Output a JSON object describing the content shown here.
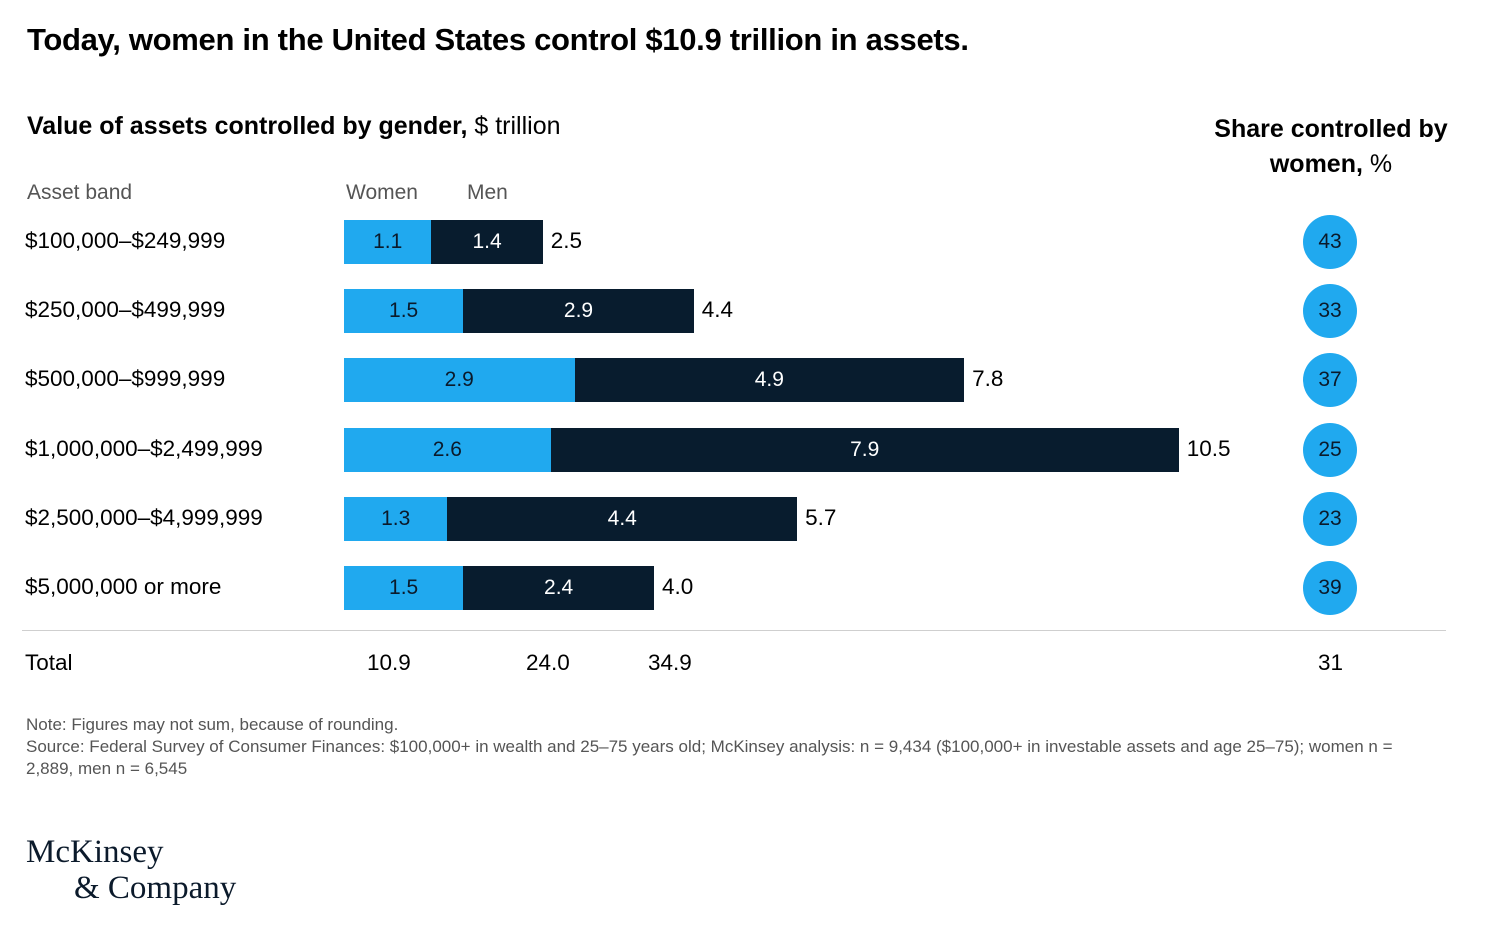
{
  "title": "Today, women in the United States control $10.9 trillion in assets.",
  "subtitle": {
    "bold": "Value of assets controlled by gender,",
    "unit": " $ trillion"
  },
  "share_header": {
    "bold": "Share controlled by women,",
    "unit": " %"
  },
  "columns": {
    "band": "Asset band",
    "women": "Women",
    "men": "Men"
  },
  "colors": {
    "women": "#20a9ef",
    "men": "#081c2e"
  },
  "chart_data": {
    "type": "bar",
    "orientation": "horizontal",
    "stacked": true,
    "title": "Value of assets controlled by gender, $ trillion",
    "categories": [
      "$100,000–$249,999",
      "$250,000–$499,999",
      "$500,000–$999,999",
      "$1,000,000–$2,499,999",
      "$2,500,000–$4,999,999",
      "$5,000,000 or more"
    ],
    "series": [
      {
        "name": "Women",
        "values": [
          1.1,
          1.5,
          2.9,
          2.6,
          1.3,
          1.5
        ]
      },
      {
        "name": "Men",
        "values": [
          1.4,
          2.9,
          4.9,
          7.9,
          4.4,
          2.4
        ]
      }
    ],
    "row_totals": [
      "2.5",
      "4.4",
      "7.8",
      "10.5",
      "5.7",
      "4.0"
    ],
    "share_women_pct": [
      43,
      33,
      37,
      25,
      23,
      39
    ],
    "totals": {
      "label": "Total",
      "women": "10.9",
      "men": "24.0",
      "all": "34.9",
      "share": "31"
    },
    "xlim": [
      0,
      10.5
    ],
    "grid": false,
    "legend": "top-left"
  },
  "labels": {
    "women": [
      "1.1",
      "1.5",
      "2.9",
      "2.6",
      "1.3",
      "1.5"
    ],
    "men": [
      "1.4",
      "2.9",
      "4.9",
      "7.9",
      "4.4",
      "2.4"
    ],
    "share": [
      "43",
      "33",
      "37",
      "25",
      "23",
      "39"
    ]
  },
  "note": "Note: Figures may not sum, because of rounding.",
  "source": "Source: Federal Survey of Consumer Finances: $100,000+ in wealth and 25–75 years old; McKinsey analysis: n = 9,434 ($100,000+ in investable assets and age 25–75); women n = 2,889, men n = 6,545",
  "logo": {
    "line1": "McKinsey",
    "line2": "& Company"
  }
}
